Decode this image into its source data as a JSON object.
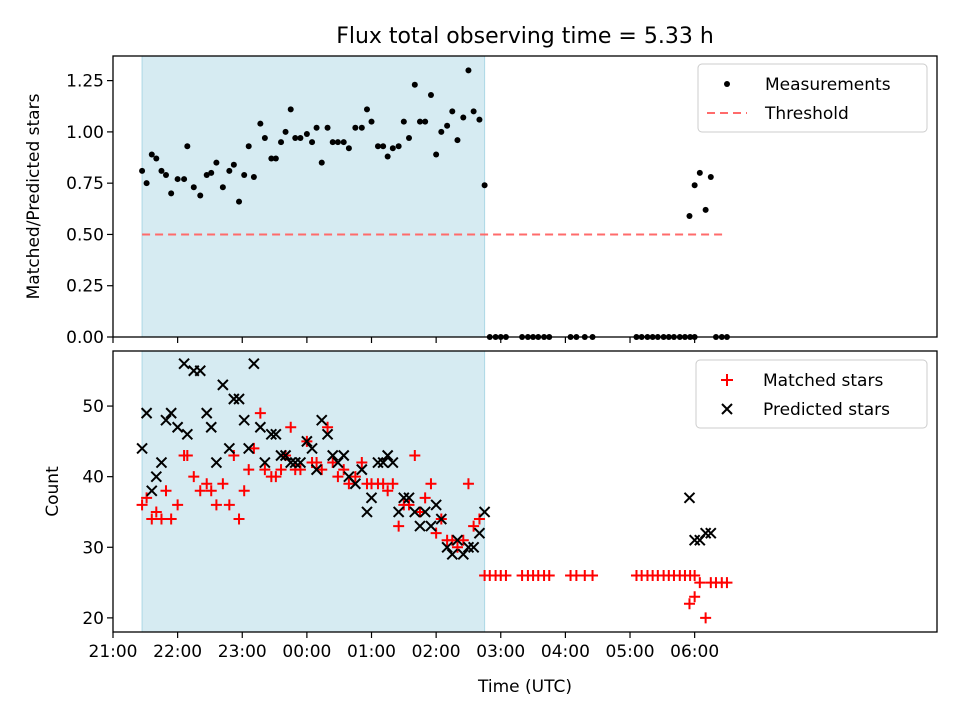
{
  "title": "Flux total observing time = 5.33 h",
  "colors": {
    "shade": "#add8e6",
    "threshold": "#ff6b6b",
    "measurement": "#000000",
    "matched": "#ff0000",
    "predicted": "#000000"
  },
  "chart_data": [
    {
      "type": "scatter",
      "ylabel": "Matched/Predicted stars",
      "xlim": [
        -3,
        9.75
      ],
      "ylim": [
        0,
        1.37
      ],
      "yticks": [
        "0.00",
        "0.25",
        "0.50",
        "0.75",
        "1.00",
        "1.25"
      ],
      "observing_window": [
        -2.55,
        2.75
      ],
      "legend": {
        "position": "top-right",
        "entries": [
          "Measurements",
          "Threshold"
        ]
      },
      "threshold": {
        "name": "Threshold",
        "y": 0.5,
        "x_range": [
          -2.55,
          6.5
        ]
      },
      "series": [
        {
          "name": "Measurements",
          "points": [
            [
              -2.55,
              0.81
            ],
            [
              -2.48,
              0.75
            ],
            [
              -2.4,
              0.89
            ],
            [
              -2.33,
              0.87
            ],
            [
              -2.25,
              0.81
            ],
            [
              -2.18,
              0.79
            ],
            [
              -2.1,
              0.7
            ],
            [
              -2.0,
              0.77
            ],
            [
              -1.9,
              0.77
            ],
            [
              -1.85,
              0.93
            ],
            [
              -1.75,
              0.73
            ],
            [
              -1.65,
              0.69
            ],
            [
              -1.55,
              0.79
            ],
            [
              -1.48,
              0.8
            ],
            [
              -1.4,
              0.85
            ],
            [
              -1.3,
              0.73
            ],
            [
              -1.2,
              0.81
            ],
            [
              -1.13,
              0.84
            ],
            [
              -1.05,
              0.66
            ],
            [
              -0.97,
              0.79
            ],
            [
              -0.9,
              0.93
            ],
            [
              -0.82,
              0.78
            ],
            [
              -0.72,
              1.04
            ],
            [
              -0.65,
              0.97
            ],
            [
              -0.55,
              0.87
            ],
            [
              -0.48,
              0.87
            ],
            [
              -0.4,
              0.95
            ],
            [
              -0.33,
              1.0
            ],
            [
              -0.25,
              1.11
            ],
            [
              -0.18,
              0.97
            ],
            [
              -0.1,
              0.97
            ],
            [
              0.0,
              0.99
            ],
            [
              0.08,
              0.95
            ],
            [
              0.15,
              1.02
            ],
            [
              0.23,
              0.85
            ],
            [
              0.32,
              1.02
            ],
            [
              0.4,
              0.95
            ],
            [
              0.48,
              0.95
            ],
            [
              0.57,
              0.95
            ],
            [
              0.65,
              0.92
            ],
            [
              0.75,
              1.02
            ],
            [
              0.85,
              1.02
            ],
            [
              0.93,
              1.11
            ],
            [
              1.0,
              1.05
            ],
            [
              1.1,
              0.93
            ],
            [
              1.18,
              0.93
            ],
            [
              1.25,
              0.88
            ],
            [
              1.33,
              0.92
            ],
            [
              1.42,
              0.93
            ],
            [
              1.5,
              1.05
            ],
            [
              1.58,
              0.97
            ],
            [
              1.67,
              1.23
            ],
            [
              1.75,
              1.05
            ],
            [
              1.83,
              1.05
            ],
            [
              1.92,
              1.18
            ],
            [
              2.0,
              0.89
            ],
            [
              2.08,
              1.0
            ],
            [
              2.17,
              1.03
            ],
            [
              2.25,
              1.1
            ],
            [
              2.33,
              0.96
            ],
            [
              2.42,
              1.07
            ],
            [
              2.5,
              1.3
            ],
            [
              2.58,
              1.1
            ],
            [
              2.67,
              1.06
            ],
            [
              2.75,
              0.74
            ],
            [
              2.83,
              0
            ],
            [
              2.92,
              0
            ],
            [
              3.0,
              0
            ],
            [
              3.08,
              0
            ],
            [
              3.33,
              0
            ],
            [
              3.42,
              0
            ],
            [
              3.5,
              0
            ],
            [
              3.58,
              0
            ],
            [
              3.67,
              0
            ],
            [
              3.75,
              0
            ],
            [
              4.08,
              0
            ],
            [
              4.17,
              0
            ],
            [
              4.3,
              0
            ],
            [
              4.42,
              0
            ],
            [
              5.1,
              0
            ],
            [
              5.18,
              0
            ],
            [
              5.27,
              0
            ],
            [
              5.35,
              0
            ],
            [
              5.43,
              0
            ],
            [
              5.52,
              0
            ],
            [
              5.6,
              0
            ],
            [
              5.68,
              0
            ],
            [
              5.77,
              0
            ],
            [
              5.85,
              0
            ],
            [
              5.93,
              0
            ],
            [
              6.0,
              0
            ],
            [
              5.92,
              0.59
            ],
            [
              6.0,
              0.74
            ],
            [
              6.08,
              0.8
            ],
            [
              6.17,
              0.62
            ],
            [
              6.25,
              0.78
            ],
            [
              6.33,
              0
            ],
            [
              6.42,
              0
            ],
            [
              6.5,
              0
            ]
          ]
        }
      ]
    },
    {
      "type": "scatter",
      "ylabel": "Count",
      "xlabel": "Time (UTC)",
      "xlim": [
        -3,
        9.75
      ],
      "ylim": [
        18,
        57.8
      ],
      "yticks": [
        "20",
        "30",
        "40",
        "50"
      ],
      "xticks": [
        "21:00",
        "22:00",
        "23:00",
        "00:00",
        "01:00",
        "02:00",
        "03:00",
        "04:00",
        "05:00",
        "06:00"
      ],
      "observing_window": [
        -2.55,
        2.75
      ],
      "legend": {
        "position": "top-right",
        "entries": [
          "Matched stars",
          "Predicted stars"
        ]
      },
      "series": [
        {
          "name": "Matched stars",
          "points": [
            [
              -2.55,
              36
            ],
            [
              -2.48,
              37
            ],
            [
              -2.4,
              34
            ],
            [
              -2.33,
              35
            ],
            [
              -2.25,
              34
            ],
            [
              -2.18,
              38
            ],
            [
              -2.1,
              34
            ],
            [
              -2.0,
              36
            ],
            [
              -1.9,
              43
            ],
            [
              -1.85,
              43
            ],
            [
              -1.75,
              40
            ],
            [
              -1.65,
              38
            ],
            [
              -1.55,
              39
            ],
            [
              -1.48,
              38
            ],
            [
              -1.4,
              36
            ],
            [
              -1.3,
              39
            ],
            [
              -1.2,
              36
            ],
            [
              -1.13,
              43
            ],
            [
              -1.05,
              34
            ],
            [
              -0.97,
              38
            ],
            [
              -0.9,
              41
            ],
            [
              -0.82,
              44
            ],
            [
              -0.72,
              49
            ],
            [
              -0.65,
              41
            ],
            [
              -0.55,
              40
            ],
            [
              -0.48,
              40
            ],
            [
              -0.4,
              41
            ],
            [
              -0.33,
              43
            ],
            [
              -0.25,
              47
            ],
            [
              -0.18,
              41
            ],
            [
              -0.1,
              41
            ],
            [
              0.0,
              45
            ],
            [
              0.08,
              42
            ],
            [
              0.15,
              42
            ],
            [
              0.23,
              41
            ],
            [
              0.32,
              47
            ],
            [
              0.4,
              42
            ],
            [
              0.48,
              40
            ],
            [
              0.57,
              41
            ],
            [
              0.65,
              39
            ],
            [
              0.75,
              40
            ],
            [
              0.85,
              42
            ],
            [
              0.93,
              39
            ],
            [
              1.0,
              39
            ],
            [
              1.1,
              39
            ],
            [
              1.18,
              39
            ],
            [
              1.25,
              38
            ],
            [
              1.33,
              39
            ],
            [
              1.42,
              33
            ],
            [
              1.5,
              36
            ],
            [
              1.58,
              36
            ],
            [
              1.67,
              43
            ],
            [
              1.75,
              35
            ],
            [
              1.83,
              37
            ],
            [
              1.92,
              39
            ],
            [
              2.0,
              32
            ],
            [
              2.08,
              34
            ],
            [
              2.17,
              31
            ],
            [
              2.25,
              31
            ],
            [
              2.33,
              30
            ],
            [
              2.42,
              31
            ],
            [
              2.5,
              39
            ],
            [
              2.58,
              33
            ],
            [
              2.67,
              34
            ],
            [
              2.75,
              26
            ],
            [
              2.83,
              26
            ],
            [
              2.92,
              26
            ],
            [
              3.0,
              26
            ],
            [
              3.08,
              26
            ],
            [
              3.33,
              26
            ],
            [
              3.42,
              26
            ],
            [
              3.5,
              26
            ],
            [
              3.58,
              26
            ],
            [
              3.67,
              26
            ],
            [
              3.75,
              26
            ],
            [
              4.08,
              26
            ],
            [
              4.17,
              26
            ],
            [
              4.3,
              26
            ],
            [
              4.42,
              26
            ],
            [
              5.1,
              26
            ],
            [
              5.18,
              26
            ],
            [
              5.27,
              26
            ],
            [
              5.35,
              26
            ],
            [
              5.43,
              26
            ],
            [
              5.52,
              26
            ],
            [
              5.6,
              26
            ],
            [
              5.68,
              26
            ],
            [
              5.77,
              26
            ],
            [
              5.85,
              26
            ],
            [
              5.93,
              26
            ],
            [
              6.0,
              26
            ],
            [
              5.92,
              22
            ],
            [
              6.0,
              23
            ],
            [
              6.08,
              25
            ],
            [
              6.17,
              20
            ],
            [
              6.25,
              25
            ],
            [
              6.33,
              25
            ],
            [
              6.42,
              25
            ],
            [
              6.5,
              25
            ]
          ]
        },
        {
          "name": "Predicted stars",
          "points": [
            [
              -2.55,
              44
            ],
            [
              -2.48,
              49
            ],
            [
              -2.4,
              38
            ],
            [
              -2.33,
              40
            ],
            [
              -2.25,
              42
            ],
            [
              -2.18,
              48
            ],
            [
              -2.1,
              49
            ],
            [
              -2.0,
              47
            ],
            [
              -1.9,
              56
            ],
            [
              -1.85,
              46
            ],
            [
              -1.75,
              55
            ],
            [
              -1.65,
              55
            ],
            [
              -1.55,
              49
            ],
            [
              -1.48,
              47
            ],
            [
              -1.4,
              42
            ],
            [
              -1.3,
              53
            ],
            [
              -1.2,
              44
            ],
            [
              -1.13,
              51
            ],
            [
              -1.05,
              51
            ],
            [
              -0.97,
              48
            ],
            [
              -0.9,
              44
            ],
            [
              -0.82,
              56
            ],
            [
              -0.72,
              47
            ],
            [
              -0.65,
              42
            ],
            [
              -0.55,
              46
            ],
            [
              -0.48,
              46
            ],
            [
              -0.4,
              43
            ],
            [
              -0.33,
              43
            ],
            [
              -0.25,
              42
            ],
            [
              -0.18,
              42
            ],
            [
              -0.1,
              42
            ],
            [
              0.0,
              45
            ],
            [
              0.08,
              44
            ],
            [
              0.15,
              41
            ],
            [
              0.23,
              48
            ],
            [
              0.32,
              46
            ],
            [
              0.4,
              43
            ],
            [
              0.48,
              42
            ],
            [
              0.57,
              43
            ],
            [
              0.65,
              40
            ],
            [
              0.75,
              39
            ],
            [
              0.85,
              41
            ],
            [
              0.93,
              35
            ],
            [
              1.0,
              37
            ],
            [
              1.1,
              42
            ],
            [
              1.18,
              42
            ],
            [
              1.25,
              43
            ],
            [
              1.33,
              42
            ],
            [
              1.42,
              35
            ],
            [
              1.5,
              37
            ],
            [
              1.58,
              37
            ],
            [
              1.67,
              35
            ],
            [
              1.75,
              33
            ],
            [
              1.83,
              35
            ],
            [
              1.92,
              33
            ],
            [
              2.0,
              36
            ],
            [
              2.08,
              34
            ],
            [
              2.17,
              30
            ],
            [
              2.25,
              29
            ],
            [
              2.33,
              31
            ],
            [
              2.42,
              29
            ],
            [
              2.5,
              30
            ],
            [
              2.58,
              30
            ],
            [
              2.67,
              32
            ],
            [
              2.75,
              35
            ],
            [
              5.92,
              37
            ],
            [
              6.0,
              31
            ],
            [
              6.08,
              31
            ],
            [
              6.17,
              32
            ],
            [
              6.25,
              32
            ]
          ]
        }
      ]
    }
  ]
}
